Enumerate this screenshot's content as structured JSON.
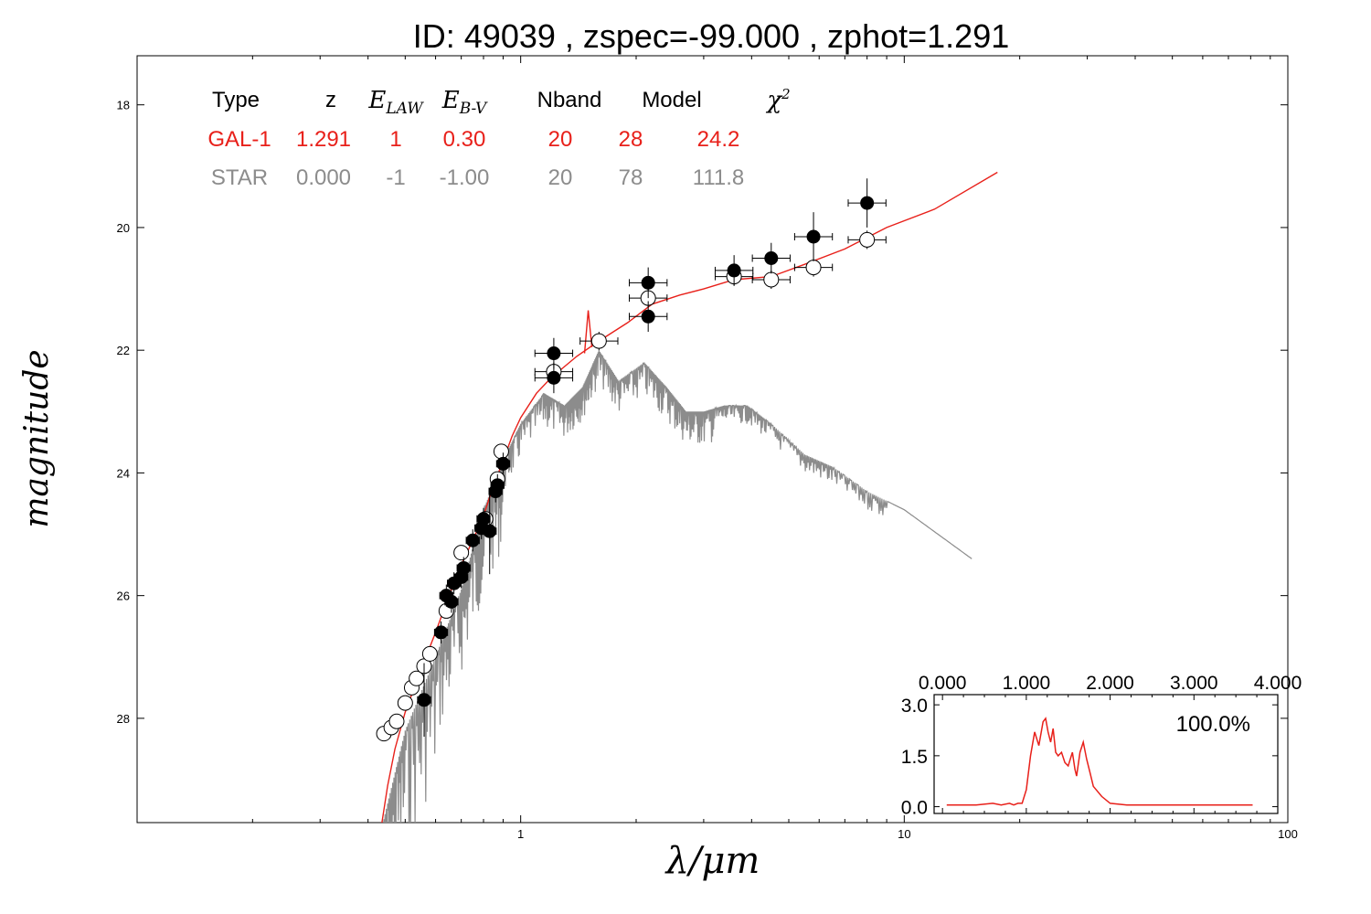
{
  "figure": {
    "title": "ID:  49039 , zspec=-99.000 , zphot=1.291"
  },
  "chart_data": [
    {
      "type": "scatter",
      "role": "main-sed",
      "xlabel": "λ/μm",
      "ylabel": "magnitude",
      "xscale": "log",
      "xlim": [
        0.1,
        100
      ],
      "ylim": [
        29.7,
        17.2
      ],
      "y_inverted": true,
      "x_tick_labels": [
        "1",
        "10",
        "100"
      ],
      "y_tick_labels": [
        "18",
        "20",
        "22",
        "24",
        "26",
        "28"
      ],
      "legend_table": {
        "headers": [
          "Type",
          "z",
          "E_LAW",
          "E_B-V",
          "Nband",
          "Model",
          "χ2"
        ],
        "rows": [
          {
            "values": [
              "GAL-1",
              "1.291",
              "1",
              "0.30",
              "20",
              "28",
              "24.2"
            ],
            "color": "#e8201a"
          },
          {
            "values": [
              "STAR",
              "0.000",
              "-1",
              "-1.00",
              "20",
              "78",
              "111.8"
            ],
            "color": "#8c8c8c"
          }
        ]
      },
      "series": [
        {
          "name": "GAL-1",
          "kind": "line",
          "color": "#e8201a",
          "points": [
            [
              0.43,
              29.9
            ],
            [
              0.45,
              29.1
            ],
            [
              0.47,
              28.5
            ],
            [
              0.5,
              27.9
            ],
            [
              0.55,
              27.2
            ],
            [
              0.6,
              26.6
            ],
            [
              0.65,
              26.0
            ],
            [
              0.7,
              25.5
            ],
            [
              0.75,
              25.1
            ],
            [
              0.8,
              24.7
            ],
            [
              0.85,
              24.2
            ],
            [
              0.9,
              23.8
            ],
            [
              0.95,
              23.4
            ],
            [
              1.0,
              23.1
            ],
            [
              1.1,
              22.7
            ],
            [
              1.2,
              22.45
            ],
            [
              1.4,
              22.1
            ],
            [
              1.6,
              21.85
            ],
            [
              1.9,
              21.55
            ],
            [
              2.2,
              21.25
            ],
            [
              2.6,
              21.1
            ],
            [
              3.0,
              21.0
            ],
            [
              3.6,
              20.85
            ],
            [
              4.5,
              20.8
            ],
            [
              5.5,
              20.6
            ],
            [
              7.0,
              20.35
            ],
            [
              9.0,
              20.0
            ],
            [
              12.0,
              19.7
            ],
            [
              17.5,
              19.1
            ]
          ]
        },
        {
          "name": "STAR",
          "kind": "line",
          "color": "#8c8c8c",
          "points": [
            [
              0.43,
              29.9
            ],
            [
              0.5,
              28.2
            ],
            [
              0.6,
              27.0
            ],
            [
              0.7,
              25.9
            ],
            [
              0.8,
              24.6
            ],
            [
              0.9,
              23.8
            ],
            [
              1.0,
              23.2
            ],
            [
              1.15,
              22.7
            ],
            [
              1.3,
              22.9
            ],
            [
              1.45,
              22.6
            ],
            [
              1.6,
              22.0
            ],
            [
              1.8,
              22.5
            ],
            [
              2.1,
              22.2
            ],
            [
              2.4,
              22.6
            ],
            [
              2.7,
              23.0
            ],
            [
              3.0,
              23.0
            ],
            [
              3.4,
              22.9
            ],
            [
              3.9,
              22.9
            ],
            [
              4.5,
              23.2
            ],
            [
              5.5,
              23.7
            ],
            [
              6.5,
              23.9
            ],
            [
              8.0,
              24.3
            ],
            [
              10.0,
              24.6
            ],
            [
              15.0,
              25.4
            ]
          ]
        },
        {
          "name": "observed",
          "kind": "points",
          "marker": "filled-circle",
          "color": "#000000",
          "points": [
            [
              0.56,
              27.7
            ],
            [
              0.62,
              26.6
            ],
            [
              0.64,
              26.0
            ],
            [
              0.66,
              26.1
            ],
            [
              0.67,
              25.8
            ],
            [
              0.7,
              25.7
            ],
            [
              0.71,
              25.55
            ],
            [
              0.75,
              25.1
            ],
            [
              0.79,
              24.9
            ],
            [
              0.8,
              24.75
            ],
            [
              0.83,
              24.95
            ],
            [
              0.86,
              24.3
            ],
            [
              0.87,
              24.2
            ],
            [
              0.9,
              23.85
            ],
            [
              1.22,
              22.05
            ],
            [
              1.22,
              22.45
            ],
            [
              2.15,
              20.9
            ],
            [
              2.15,
              21.45
            ],
            [
              3.6,
              20.7
            ],
            [
              4.5,
              20.5
            ],
            [
              5.8,
              20.15
            ],
            [
              8.0,
              19.6
            ]
          ]
        },
        {
          "name": "model",
          "kind": "points",
          "marker": "open-circle",
          "color": "#000000",
          "points": [
            [
              0.44,
              28.25
            ],
            [
              0.46,
              28.15
            ],
            [
              0.475,
              28.05
            ],
            [
              0.5,
              27.75
            ],
            [
              0.52,
              27.5
            ],
            [
              0.535,
              27.35
            ],
            [
              0.56,
              27.15
            ],
            [
              0.58,
              26.95
            ],
            [
              0.64,
              26.25
            ],
            [
              0.7,
              25.3
            ],
            [
              0.81,
              24.75
            ],
            [
              0.87,
              24.1
            ],
            [
              0.89,
              23.65
            ],
            [
              1.22,
              22.35
            ],
            [
              1.6,
              21.85
            ],
            [
              2.15,
              21.15
            ],
            [
              3.6,
              20.8
            ],
            [
              4.5,
              20.85
            ],
            [
              5.8,
              20.65
            ],
            [
              8.0,
              20.2
            ]
          ]
        }
      ]
    },
    {
      "type": "line",
      "role": "pdz-inset",
      "annotation": "100.0%",
      "xlim": [
        -0.1,
        4.0
      ],
      "ylim": [
        -0.2,
        3.3
      ],
      "x_tick_labels": [
        "0.000",
        "1.000",
        "2.000",
        "3.000",
        "4.000"
      ],
      "y_tick_labels": [
        "3.0",
        "1.5",
        "0.0"
      ],
      "series": [
        {
          "color": "#e8201a",
          "x": [
            0.05,
            0.2,
            0.4,
            0.6,
            0.7,
            0.8,
            0.85,
            0.9,
            0.95,
            1.0,
            1.05,
            1.1,
            1.15,
            1.2,
            1.23,
            1.26,
            1.29,
            1.32,
            1.35,
            1.38,
            1.42,
            1.46,
            1.5,
            1.55,
            1.58,
            1.6,
            1.64,
            1.68,
            1.72,
            1.76,
            1.8,
            1.9,
            2.0,
            2.2,
            2.5,
            3.0,
            3.5,
            3.7
          ],
          "y": [
            0.05,
            0.05,
            0.05,
            0.1,
            0.05,
            0.1,
            0.05,
            0.1,
            0.1,
            0.5,
            1.5,
            2.2,
            1.8,
            2.5,
            2.6,
            2.2,
            1.9,
            2.3,
            1.6,
            1.5,
            1.6,
            1.3,
            1.2,
            1.6,
            1.1,
            0.9,
            1.6,
            1.9,
            1.4,
            1.0,
            0.6,
            0.3,
            0.1,
            0.05,
            0.05,
            0.05,
            0.05,
            0.05
          ]
        }
      ]
    }
  ]
}
